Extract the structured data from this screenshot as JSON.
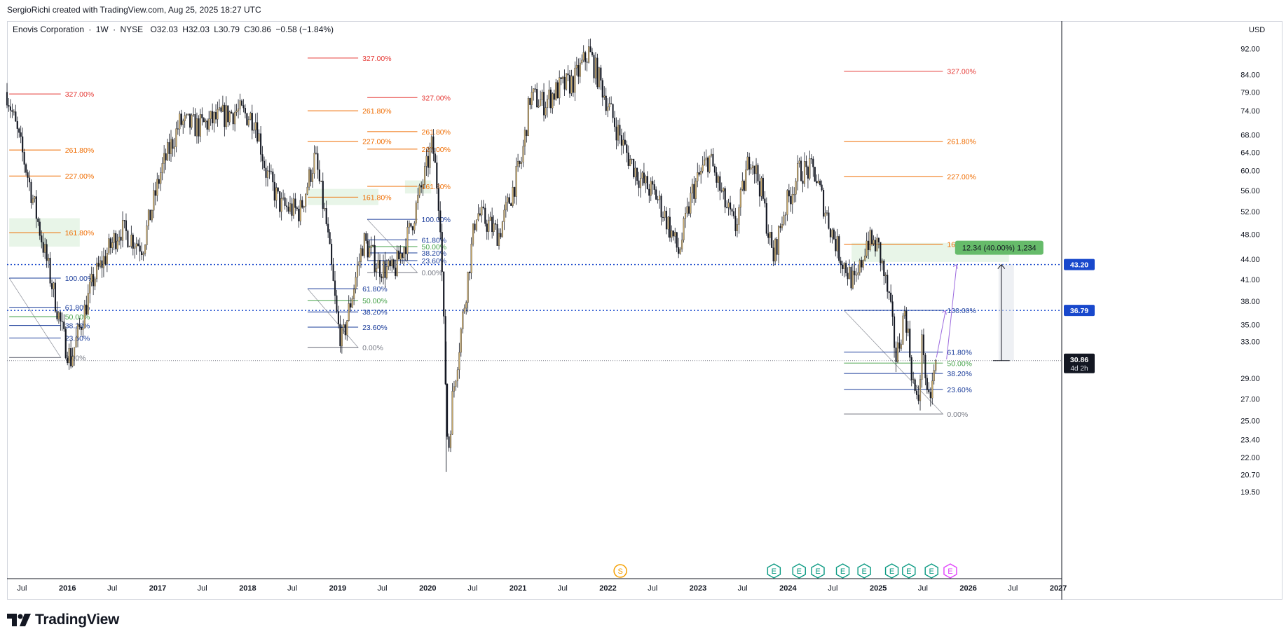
{
  "attribution": "SergioRichi created with TradingView.com, Aug 25, 2025 18:27 UTC",
  "symbol": {
    "name": "Enovis Corporation",
    "interval": "1W",
    "exchange": "NYSE",
    "open": "O32.03",
    "high": "H32.03",
    "low": "L30.79",
    "close": "C30.86",
    "change": "−0.58 (−1.84%)"
  },
  "currency": "USD",
  "brand": "TradingView",
  "colors": {
    "up": "#c8a96a",
    "down": "#131722",
    "fib_red": "#e53935",
    "fib_orange": "#ef6c00",
    "fib_blue": "#1a3c9a",
    "fib_green": "#43a047",
    "fib_gray": "#787b86",
    "hline_blue": "#1848cc",
    "price_tag": "#131722",
    "measure_green": "#66bb6a",
    "earnings": "#089981",
    "dividend": "#f59f00",
    "projection": "#9c6ade"
  },
  "chart_data": {
    "type": "candlestick",
    "y_scale": "log",
    "ylim": [
      19.5,
      96
    ],
    "xlim": [
      "2015-05-01",
      "2027-01-15"
    ],
    "y_ticks": [
      "92.00",
      "84.00",
      "79.00",
      "74.00",
      "68.00",
      "64.00",
      "60.00",
      "56.00",
      "52.00",
      "48.00",
      "44.00",
      "41.00",
      "38.00",
      "35.00",
      "33.00",
      "29.00",
      "27.00",
      "25.00",
      "23.40",
      "22.00",
      "20.70",
      "19.50"
    ],
    "x_ticks": [
      {
        "label": "Jul",
        "date": "2015-07-01"
      },
      {
        "label": "2016",
        "date": "2016-01-01"
      },
      {
        "label": "Jul",
        "date": "2016-07-01"
      },
      {
        "label": "2017",
        "date": "2017-01-01"
      },
      {
        "label": "Jul",
        "date": "2017-07-01"
      },
      {
        "label": "2018",
        "date": "2018-01-01"
      },
      {
        "label": "Jul",
        "date": "2018-07-01"
      },
      {
        "label": "2019",
        "date": "2019-01-01"
      },
      {
        "label": "Jul",
        "date": "2019-07-01"
      },
      {
        "label": "2020",
        "date": "2020-01-01"
      },
      {
        "label": "Jul",
        "date": "2020-07-01"
      },
      {
        "label": "2021",
        "date": "2021-01-01"
      },
      {
        "label": "Jul",
        "date": "2021-07-01"
      },
      {
        "label": "2022",
        "date": "2022-01-01"
      },
      {
        "label": "Jul",
        "date": "2022-07-01"
      },
      {
        "label": "2023",
        "date": "2023-01-01"
      },
      {
        "label": "Jul",
        "date": "2023-07-01"
      },
      {
        "label": "2024",
        "date": "2024-01-01"
      },
      {
        "label": "Jul",
        "date": "2024-07-01"
      },
      {
        "label": "2025",
        "date": "2025-01-01"
      },
      {
        "label": "Jul",
        "date": "2025-07-01"
      },
      {
        "label": "2026",
        "date": "2026-01-01"
      },
      {
        "label": "Jul",
        "date": "2026-07-01"
      },
      {
        "label": "2027",
        "date": "2027-01-01"
      }
    ],
    "price_path": [
      [
        "2015-05-01",
        79
      ],
      [
        "2015-07-15",
        61
      ],
      [
        "2015-09-15",
        48
      ],
      [
        "2015-12-20",
        33
      ],
      [
        "2016-01-15",
        31
      ],
      [
        "2016-04-15",
        41
      ],
      [
        "2016-08-01",
        49
      ],
      [
        "2016-11-01",
        46
      ],
      [
        "2017-01-15",
        60
      ],
      [
        "2017-04-01",
        71
      ],
      [
        "2017-06-15",
        70
      ],
      [
        "2017-09-01",
        72
      ],
      [
        "2017-11-15",
        74
      ],
      [
        "2018-02-01",
        72
      ],
      [
        "2018-03-15",
        60
      ],
      [
        "2018-05-15",
        53
      ],
      [
        "2018-08-01",
        52
      ],
      [
        "2018-10-01",
        63
      ],
      [
        "2018-11-15",
        50
      ],
      [
        "2019-01-01",
        35
      ],
      [
        "2019-01-20",
        33
      ],
      [
        "2019-04-15",
        47
      ],
      [
        "2019-06-15",
        43
      ],
      [
        "2019-08-15",
        42
      ],
      [
        "2019-10-15",
        48
      ],
      [
        "2019-12-15",
        58
      ],
      [
        "2020-01-20",
        66
      ],
      [
        "2020-02-20",
        52
      ],
      [
        "2020-03-23",
        22
      ],
      [
        "2020-04-10",
        27
      ],
      [
        "2020-07-15",
        52
      ],
      [
        "2020-10-15",
        48
      ],
      [
        "2021-01-15",
        62
      ],
      [
        "2021-02-20",
        78
      ],
      [
        "2021-04-15",
        76
      ],
      [
        "2021-06-15",
        80
      ],
      [
        "2021-08-15",
        82
      ],
      [
        "2021-10-15",
        91
      ],
      [
        "2021-12-10",
        80
      ],
      [
        "2022-01-15",
        73
      ],
      [
        "2022-03-15",
        64
      ],
      [
        "2022-05-15",
        58
      ],
      [
        "2022-07-15",
        55
      ],
      [
        "2022-09-01",
        50
      ],
      [
        "2022-10-15",
        45
      ],
      [
        "2022-12-10",
        56
      ],
      [
        "2023-02-15",
        63
      ],
      [
        "2023-04-15",
        54
      ],
      [
        "2023-06-01",
        49
      ],
      [
        "2023-08-01",
        64
      ],
      [
        "2023-09-15",
        56
      ],
      [
        "2023-11-01",
        44
      ],
      [
        "2023-12-15",
        52
      ],
      [
        "2024-02-15",
        60
      ],
      [
        "2024-04-15",
        60
      ],
      [
        "2024-06-15",
        50
      ],
      [
        "2024-08-05",
        44
      ],
      [
        "2024-10-01",
        40
      ],
      [
        "2024-11-15",
        47
      ],
      [
        "2025-01-01",
        46
      ],
      [
        "2025-02-15",
        38
      ],
      [
        "2025-03-15",
        31
      ],
      [
        "2025-04-20",
        37
      ],
      [
        "2025-05-20",
        29
      ],
      [
        "2025-06-10",
        26
      ],
      [
        "2025-06-30",
        34
      ],
      [
        "2025-07-20",
        26
      ],
      [
        "2025-08-25",
        30.86
      ]
    ],
    "last_price": 30.86,
    "last_date": "2025-08-25",
    "countdown": "4d 2h",
    "horizontal_lines": [
      {
        "price": 43.2,
        "label": "43.20"
      },
      {
        "price": 36.79,
        "label": "36.79"
      }
    ],
    "measure": {
      "from_price": 30.86,
      "to_price": 43.2,
      "date": "2026-05-15",
      "label": "12.34 (40.00%) 1,234"
    },
    "fib_sets": [
      {
        "x0": "2015-05-10",
        "x1": "2015-12-05",
        "levels": [
          {
            "label": "327.00%",
            "price": 78.5,
            "color": "fib_red"
          },
          {
            "label": "261.80%",
            "price": 64.5,
            "color": "fib_orange"
          },
          {
            "label": "227.00%",
            "price": 58.9,
            "color": "fib_orange"
          },
          {
            "label": "161.80%",
            "price": 48.3,
            "color": "fib_orange"
          },
          {
            "label": "100.00%",
            "price": 41.2,
            "color": "fib_blue"
          },
          {
            "label": "61.80%",
            "price": 37.2,
            "color": "fib_blue"
          },
          {
            "label": "50.00%",
            "price": 36.0,
            "color": "fib_green"
          },
          {
            "label": "38.20%",
            "price": 34.9,
            "color": "fib_blue"
          },
          {
            "label": "23.60%",
            "price": 33.4,
            "color": "fib_blue"
          },
          {
            "label": "0.00%",
            "price": 31.2,
            "color": "fib_gray"
          }
        ]
      },
      {
        "x0": "2018-09-01",
        "x1": "2019-03-25",
        "levels": [
          {
            "label": "327.00%",
            "price": 89,
            "color": "fib_red"
          },
          {
            "label": "261.80%",
            "price": 74,
            "color": "fib_orange"
          },
          {
            "label": "227.00%",
            "price": 66.5,
            "color": "fib_orange"
          },
          {
            "label": "161.80%",
            "price": 54.7,
            "color": "fib_orange"
          },
          {
            "label": "61.80%",
            "price": 39.7,
            "color": "fib_blue"
          },
          {
            "label": "50.00%",
            "price": 38.1,
            "color": "fib_green"
          },
          {
            "label": "38.20%",
            "price": 36.6,
            "color": "fib_blue"
          },
          {
            "label": "23.60%",
            "price": 34.7,
            "color": "fib_blue"
          },
          {
            "label": "0.00%",
            "price": 32.3,
            "color": "fib_gray"
          }
        ]
      },
      {
        "x0": "2019-05-01",
        "x1": "2019-11-20",
        "levels": [
          {
            "label": "327.00%",
            "price": 77.5,
            "color": "fib_red"
          },
          {
            "label": "261.80%",
            "price": 68.8,
            "color": "fib_orange"
          },
          {
            "label": "227.00%",
            "price": 64.7,
            "color": "fib_orange"
          },
          {
            "label": "161.80%",
            "price": 56.8,
            "color": "fib_orange"
          },
          {
            "label": "100.00%",
            "price": 50.6,
            "color": "fib_blue"
          },
          {
            "label": "61.80%",
            "price": 47.1,
            "color": "fib_blue"
          },
          {
            "label": "50.00%",
            "price": 46.0,
            "color": "fib_green"
          },
          {
            "label": "38.20%",
            "price": 45.0,
            "color": "fib_blue"
          },
          {
            "label": "23.60%",
            "price": 43.8,
            "color": "fib_blue"
          },
          {
            "label": "0.00%",
            "price": 42.0,
            "color": "fib_gray"
          }
        ]
      },
      {
        "x0": "2024-08-15",
        "x1": "2025-09-20",
        "levels": [
          {
            "label": "327.00%",
            "price": 85,
            "color": "fib_red"
          },
          {
            "label": "261.80%",
            "price": 66.5,
            "color": "fib_orange"
          },
          {
            "label": "227.00%",
            "price": 58.8,
            "color": "fib_orange"
          },
          {
            "label": "161.80%",
            "price": 46.4,
            "color": "fib_orange"
          },
          {
            "label": "100.00%",
            "price": 36.8,
            "color": "fib_blue"
          },
          {
            "label": "61.80%",
            "price": 31.8,
            "color": "fib_blue"
          },
          {
            "label": "50.00%",
            "price": 30.6,
            "color": "fib_green"
          },
          {
            "label": "38.20%",
            "price": 29.5,
            "color": "fib_blue"
          },
          {
            "label": "23.60%",
            "price": 27.9,
            "color": "fib_blue"
          },
          {
            "label": "0.00%",
            "price": 25.6,
            "color": "fib_gray"
          }
        ]
      }
    ],
    "highlight_zones": [
      {
        "x0": "2015-05-10",
        "x1": "2016-02-20",
        "p0": 46.0,
        "p1": 50.8
      },
      {
        "x0": "2018-09-01",
        "x1": "2019-06-15",
        "p0": 53.2,
        "p1": 56.3
      },
      {
        "x0": "2019-10-01",
        "x1": "2020-01-15",
        "p0": 55.4,
        "p1": 58.0
      },
      {
        "x0": "2024-09-15",
        "x1": "2026-06-15",
        "p0": 43.6,
        "p1": 46.6
      }
    ],
    "events": [
      {
        "type": "dividend",
        "symbol": "S",
        "date": "2022-02-20"
      },
      {
        "type": "earnings",
        "symbol": "E",
        "date": "2023-11-05"
      },
      {
        "type": "earnings",
        "symbol": "E",
        "date": "2024-02-15"
      },
      {
        "type": "earnings",
        "symbol": "E",
        "date": "2024-05-01"
      },
      {
        "type": "earnings",
        "symbol": "E",
        "date": "2024-08-10"
      },
      {
        "type": "earnings",
        "symbol": "E",
        "date": "2024-11-05"
      },
      {
        "type": "earnings",
        "symbol": "E",
        "date": "2025-02-25"
      },
      {
        "type": "earnings",
        "symbol": "E",
        "date": "2025-05-05"
      },
      {
        "type": "earnings",
        "symbol": "E",
        "date": "2025-08-05"
      },
      {
        "type": "earnings_upcoming",
        "symbol": "E",
        "date": "2025-10-20"
      }
    ]
  }
}
